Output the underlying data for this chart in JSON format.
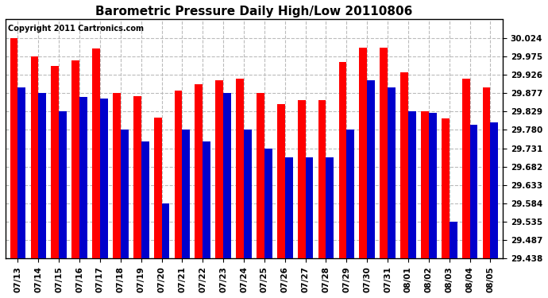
{
  "title": "Barometric Pressure Daily High/Low 20110806",
  "copyright": "Copyright 2011 Cartronics.com",
  "dates": [
    "07/13",
    "07/14",
    "07/15",
    "07/16",
    "07/17",
    "07/18",
    "07/19",
    "07/20",
    "07/21",
    "07/22",
    "07/23",
    "07/24",
    "07/25",
    "07/26",
    "07/27",
    "07/28",
    "07/29",
    "07/30",
    "07/31",
    "08/01",
    "08/02",
    "08/03",
    "08/04",
    "08/05"
  ],
  "highs": [
    30.024,
    29.975,
    29.95,
    29.965,
    29.995,
    29.877,
    29.87,
    29.812,
    29.885,
    29.9,
    29.912,
    29.916,
    29.877,
    29.848,
    29.858,
    29.858,
    29.96,
    29.998,
    29.998,
    29.932,
    29.829,
    29.81,
    29.916,
    29.893
  ],
  "lows": [
    29.892,
    29.877,
    29.829,
    29.868,
    29.863,
    29.78,
    29.75,
    29.584,
    29.78,
    29.75,
    29.877,
    29.78,
    29.731,
    29.706,
    29.706,
    29.706,
    29.78,
    29.912,
    29.892,
    29.829,
    29.824,
    29.535,
    29.794,
    29.8
  ],
  "yticks": [
    29.438,
    29.487,
    29.535,
    29.584,
    29.633,
    29.682,
    29.731,
    29.78,
    29.829,
    29.877,
    29.926,
    29.975,
    30.024
  ],
  "ymin": 29.438,
  "ymax": 30.073,
  "bar_width": 0.38,
  "high_color": "#ff0000",
  "low_color": "#0000cc",
  "bg_color": "#ffffff",
  "grid_color": "#bbbbbb",
  "title_fontsize": 11,
  "tick_fontsize": 7.5,
  "copyright_fontsize": 7
}
